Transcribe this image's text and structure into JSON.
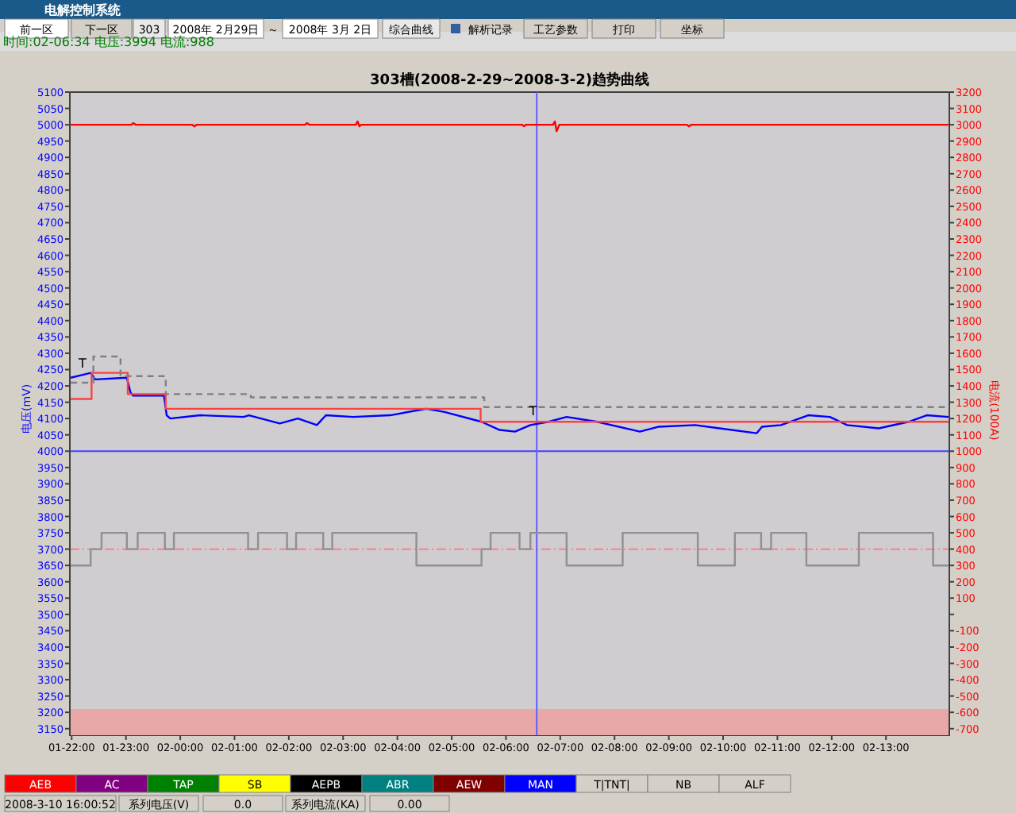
{
  "chart_data": {
    "type": "line",
    "title": "303槽(2008-2-29~2008-3-2)趋势曲线",
    "ylabel": "电压(mV)",
    "y2label": "电流(100A)",
    "xlim": [
      "2008-03-01T21:58",
      "2008-03-02T14:10"
    ],
    "ylim": [
      3130,
      5100
    ],
    "y2lim": [
      -740,
      3200
    ],
    "xticks": [
      {
        "value": "2008-03-01T22:00",
        "label": "01-22:00"
      },
      {
        "value": "2008-03-01T23:00",
        "label": "01-23:00"
      },
      {
        "value": "2008-03-02T00:00",
        "label": "02-00:00"
      },
      {
        "value": "2008-03-02T01:00",
        "label": "02-01:00"
      },
      {
        "value": "2008-03-02T02:00",
        "label": "02-02:00"
      },
      {
        "value": "2008-03-02T03:00",
        "label": "02-03:00"
      },
      {
        "value": "2008-03-02T04:00",
        "label": "02-04:00"
      },
      {
        "value": "2008-03-02T05:00",
        "label": "02-05:00"
      },
      {
        "value": "2008-03-02T06:00",
        "label": "02-06:00"
      },
      {
        "value": "2008-03-02T07:00",
        "label": "02-07:00"
      },
      {
        "value": "2008-03-02T08:00",
        "label": "02-08:00"
      },
      {
        "value": "2008-03-02T09:00",
        "label": "02-09:00"
      },
      {
        "value": "2008-03-02T10:00",
        "label": "02-10:00"
      },
      {
        "value": "2008-03-02T11:00",
        "label": "02-11:00"
      },
      {
        "value": "2008-03-02T12:00",
        "label": "02-12:00"
      },
      {
        "value": "2008-03-02T13:00",
        "label": "02-13:00"
      }
    ],
    "yticks": [
      3150,
      3200,
      3250,
      3300,
      3350,
      3400,
      3450,
      3500,
      3550,
      3600,
      3650,
      3700,
      3750,
      3800,
      3850,
      3900,
      3950,
      4000,
      4050,
      4100,
      4150,
      4200,
      4250,
      4300,
      4350,
      4400,
      4450,
      4500,
      4550,
      4600,
      4650,
      4700,
      4750,
      4800,
      4850,
      4900,
      4950,
      5000,
      5050,
      5100
    ],
    "y2ticks": [
      -700,
      -600,
      -500,
      -400,
      -300,
      -200,
      -100,
      {
        "value": 0,
        "label": null
      },
      100,
      200,
      300,
      400,
      500,
      600,
      700,
      800,
      900,
      1000,
      1100,
      1200,
      1300,
      1400,
      1500,
      1600,
      1700,
      1800,
      1900,
      2000,
      2100,
      2200,
      2300,
      2400,
      2500,
      2600,
      2700,
      2800,
      2900,
      3000,
      3100,
      3200
    ],
    "grid": false,
    "series": [
      {
        "axis": "y2",
        "color": "#ff0000",
        "x": [
          "2008-03-01T21:59",
          "2008-03-01T23:06",
          "2008-03-01T23:08",
          "2008-03-01T23:11",
          "2008-03-02T00:13",
          "2008-03-02T00:16",
          "2008-03-02T00:18",
          "2008-03-02T02:18",
          "2008-03-02T02:20",
          "2008-03-02T02:23",
          "2008-03-02T03:14",
          "2008-03-02T03:16",
          "2008-03-02T03:18",
          "2008-03-02T03:20",
          "2008-03-02T06:18",
          "2008-03-02T06:20",
          "2008-03-02T06:22",
          "2008-03-02T06:52",
          "2008-03-02T06:54",
          "2008-03-02T06:56",
          "2008-03-02T06:59",
          "2008-03-02T09:20",
          "2008-03-02T09:22",
          "2008-03-02T09:25",
          "2008-03-02T14:09"
        ],
        "values": [
          3000,
          3000,
          3010,
          3000,
          3000,
          2990,
          3000,
          3000,
          3010,
          3000,
          3000,
          3020,
          2990,
          3000,
          3000,
          2990,
          3000,
          3000,
          3020,
          2960,
          3000,
          3000,
          2990,
          3000,
          3000
        ]
      },
      {
        "color": "#0000ff",
        "x": [
          "2008-03-01T21:59",
          "2008-03-01T22:14",
          "2008-03-01T22:21",
          "2008-03-01T22:26",
          "2008-03-01T23:01",
          "2008-03-01T23:05",
          "2008-03-01T23:08",
          "2008-03-01T23:42",
          "2008-03-01T23:45",
          "2008-03-01T23:49",
          "2008-03-02T00:22",
          "2008-03-02T01:10",
          "2008-03-02T01:16",
          "2008-03-02T01:50",
          "2008-03-02T02:10",
          "2008-03-02T02:31",
          "2008-03-02T02:41",
          "2008-03-02T03:11",
          "2008-03-02T03:52",
          "2008-03-02T04:32",
          "2008-03-02T04:52",
          "2008-03-02T05:33",
          "2008-03-02T05:53",
          "2008-03-02T06:10",
          "2008-03-02T06:27",
          "2008-03-02T06:47",
          "2008-03-02T07:07",
          "2008-03-02T07:41",
          "2008-03-02T08:28",
          "2008-03-02T08:49",
          "2008-03-02T09:29",
          "2008-03-02T09:56",
          "2008-03-02T10:37",
          "2008-03-02T10:43",
          "2008-03-02T11:04",
          "2008-03-02T11:34",
          "2008-03-02T11:58",
          "2008-03-02T12:17",
          "2008-03-02T12:52",
          "2008-03-02T13:25",
          "2008-03-02T13:45",
          "2008-03-02T14:09"
        ],
        "values": [
          4225,
          4235,
          4240,
          4220,
          4225,
          4180,
          4170,
          4170,
          4110,
          4100,
          4110,
          4105,
          4110,
          4085,
          4100,
          4080,
          4110,
          4105,
          4110,
          4130,
          4120,
          4090,
          4065,
          4060,
          4080,
          4090,
          4105,
          4090,
          4060,
          4075,
          4080,
          4070,
          4055,
          4075,
          4080,
          4110,
          4105,
          4080,
          4070,
          4090,
          4110,
          4105
        ]
      },
      {
        "type": "step",
        "color": "#ff4040",
        "x": [
          "2008-03-01T21:59",
          "2008-03-01T22:22",
          "2008-03-01T23:02",
          "2008-03-01T23:44",
          "2008-03-02T05:32",
          "2008-03-02T14:09"
        ],
        "values": [
          4160,
          4240,
          4175,
          4130,
          4090,
          4090
        ]
      },
      {
        "type": "step",
        "color": "#808080",
        "line_style": "dashed",
        "x": [
          "2008-03-01T21:59",
          "2008-03-01T22:24",
          "2008-03-01T22:54",
          "2008-03-01T23:44",
          "2008-03-02T01:18",
          "2008-03-02T05:36",
          "2008-03-02T14:09"
        ],
        "values": [
          4210,
          4290,
          4230,
          4175,
          4165,
          4135,
          4135
        ]
      },
      {
        "type": "step",
        "color": "#909090",
        "x": [
          "2008-03-01T21:59",
          "2008-03-01T22:21",
          "2008-03-01T22:33",
          "2008-03-01T23:01",
          "2008-03-01T23:13",
          "2008-03-01T23:43",
          "2008-03-01T23:53",
          "2008-03-02T01:15",
          "2008-03-02T01:26",
          "2008-03-02T01:58",
          "2008-03-02T02:08",
          "2008-03-02T02:38",
          "2008-03-02T02:48",
          "2008-03-02T04:21",
          "2008-03-02T05:33",
          "2008-03-02T05:43",
          "2008-03-02T06:15",
          "2008-03-02T06:27",
          "2008-03-02T07:07",
          "2008-03-02T08:09",
          "2008-03-02T09:32",
          "2008-03-02T10:13",
          "2008-03-02T10:42",
          "2008-03-02T10:53",
          "2008-03-02T11:32",
          "2008-03-02T12:30",
          "2008-03-02T13:52",
          "2008-03-02T14:09"
        ],
        "values": [
          3650,
          3700,
          3750,
          3700,
          3750,
          3700,
          3750,
          3700,
          3750,
          3700,
          3750,
          3700,
          3750,
          3650,
          3700,
          3750,
          3700,
          3750,
          3650,
          3750,
          3650,
          3750,
          3700,
          3750,
          3650,
          3750,
          3650,
          3650
        ]
      }
    ],
    "ref_lines": [
      {
        "axis": "y",
        "value": 3700,
        "color": "#ff8080",
        "line_style": "dashed"
      },
      {
        "axis": "y",
        "value": 4000,
        "color": "#4040ff"
      },
      {
        "axis": "x",
        "value": "2008-03-02T06:34",
        "color": "#6060ff"
      }
    ],
    "bands": [
      {
        "axis": "y",
        "from": 3130,
        "to": 3210,
        "color": "#e8a8a8"
      }
    ],
    "annotations": [
      "电解控制系统",
      "前一区",
      "下一区",
      "303",
      "2008年 2月29日",
      "～",
      "2008年 3月 2日",
      "综合曲线",
      "解析记录",
      "工艺参数",
      "打印",
      "坐标",
      "时间:02-06:34  电压:3994  电流:988",
      "AEB",
      "AC",
      "TAP",
      "SB",
      "AEPB",
      "ABR",
      "AEW",
      "MAN",
      "T|TNT|",
      "NB",
      "ALF",
      "2008-3-10 16:00:52",
      "系列电压(V)",
      "0.0",
      "系列电流(KA)",
      "0.00",
      {
        "text": "T",
        "x": "2008-03-01T22:12",
        "y": 4255
      },
      {
        "text": "T",
        "x": "2008-03-02T06:30",
        "y": 4110
      }
    ]
  }
}
